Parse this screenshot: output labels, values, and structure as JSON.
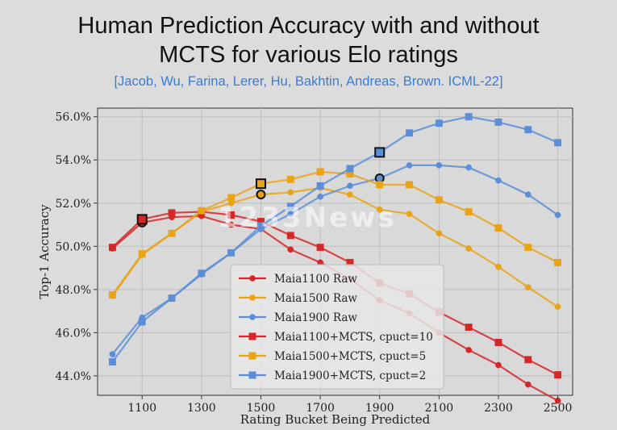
{
  "title_line1": "Human Prediction Accuracy with and without",
  "title_line2": "MCTS for various Elo ratings",
  "subtitle": "[Jacob, Wu, Farina, Lerer, Hu, Bakhtin, Andreas, Brown. ICML-22]",
  "watermark": "1233News",
  "chart_data": {
    "type": "line",
    "title": "",
    "xlabel": "Rating Bucket Being Predicted",
    "ylabel": "Top-1 Accuracy",
    "x": [
      1000,
      1100,
      1200,
      1300,
      1400,
      1500,
      1600,
      1700,
      1800,
      1900,
      2000,
      2100,
      2200,
      2300,
      2400,
      2500
    ],
    "xticks": [
      1100,
      1300,
      1500,
      1700,
      1900,
      2100,
      2300,
      2500
    ],
    "xtick_labels": [
      "1100",
      "1300",
      "1500",
      "1700",
      "1900",
      "2100",
      "2300",
      "2500"
    ],
    "yticks": [
      44,
      46,
      48,
      50,
      52,
      54,
      56
    ],
    "ytick_labels": [
      "44.0%",
      "46.0%",
      "48.0%",
      "50.0%",
      "52.0%",
      "54.0%",
      "56.0%"
    ],
    "xlim": [
      950,
      2550
    ],
    "ylim": [
      43.1,
      56.4
    ],
    "grid": true,
    "legend_position": "lower-center",
    "series": [
      {
        "name": "Maia1100 Raw",
        "color": "#d62728",
        "marker": "circle",
        "values": [
          49.9,
          51.1,
          51.35,
          51.4,
          51.0,
          50.8,
          49.85,
          49.25,
          48.5,
          47.5,
          46.9,
          46.0,
          45.2,
          44.5,
          43.6,
          42.85
        ],
        "highlight_x": 1100
      },
      {
        "name": "Maia1500 Raw",
        "color": "#e8a317",
        "marker": "circle",
        "values": [
          47.7,
          49.6,
          50.6,
          51.6,
          52.0,
          52.4,
          52.5,
          52.7,
          52.4,
          51.7,
          51.5,
          50.6,
          49.9,
          49.05,
          48.1,
          47.2
        ],
        "highlight_x": 1500
      },
      {
        "name": "Maia1900 Raw",
        "color": "#5b8ed6",
        "marker": "circle",
        "values": [
          45.0,
          46.7,
          47.6,
          48.7,
          49.7,
          50.8,
          51.5,
          52.3,
          52.8,
          53.15,
          53.75,
          53.75,
          53.65,
          53.05,
          52.4,
          51.45
        ],
        "highlight_x": 1900
      },
      {
        "name": "Maia1100+MCTS, cpuct=10",
        "color": "#d62728",
        "marker": "square",
        "values": [
          49.95,
          51.25,
          51.55,
          51.6,
          51.45,
          51.15,
          50.5,
          49.95,
          49.25,
          48.3,
          47.8,
          46.95,
          46.25,
          45.55,
          44.75,
          44.05
        ],
        "highlight_x": 1100
      },
      {
        "name": "Maia1500+MCTS, cpuct=5",
        "color": "#e8a317",
        "marker": "square",
        "values": [
          47.75,
          49.65,
          50.6,
          51.65,
          52.25,
          52.9,
          53.1,
          53.45,
          53.35,
          52.85,
          52.85,
          52.15,
          51.6,
          50.85,
          49.95,
          49.25
        ],
        "highlight_x": 1500
      },
      {
        "name": "Maia1900+MCTS, cpuct=2",
        "color": "#5b8ed6",
        "marker": "square",
        "values": [
          44.65,
          46.5,
          47.6,
          48.75,
          49.7,
          50.95,
          51.85,
          52.8,
          53.6,
          54.35,
          55.25,
          55.7,
          56.0,
          55.75,
          55.4,
          54.8
        ],
        "highlight_x": 1900
      }
    ]
  }
}
